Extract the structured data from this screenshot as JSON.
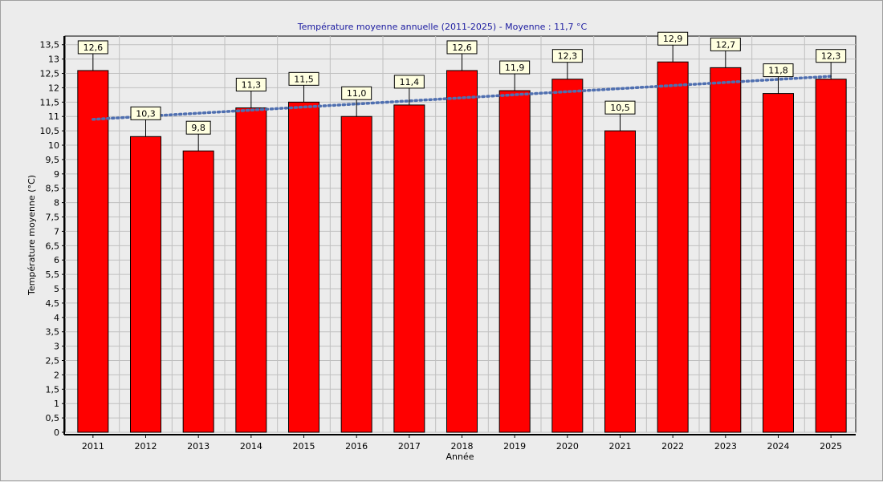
{
  "colors": {
    "bar": "#ff0000",
    "bar_stroke": "#000000",
    "trend": "#4f6fb0",
    "title": "#1a1aa0",
    "label_bg": "#ffffe0",
    "plot_bg": "#ececec",
    "grid": "#c0c0c0"
  },
  "chart_data": {
    "type": "bar",
    "title": "Température moyenne annuelle (2011-2025) - Moyenne : 11,7 °C",
    "xlabel": "Année",
    "ylabel": "Température moyenne (°C)",
    "ylim": [
      0,
      13.8
    ],
    "y_ticks": [
      "0",
      "0,5",
      "1",
      "1,5",
      "2",
      "2,5",
      "3",
      "3,5",
      "4",
      "4,5",
      "5",
      "5,5",
      "6",
      "6,5",
      "7",
      "7,5",
      "8",
      "8,5",
      "9",
      "9,5",
      "10",
      "10,5",
      "11",
      "11,5",
      "12",
      "12,5",
      "13",
      "13,5"
    ],
    "y_tick_values": [
      0,
      0.5,
      1,
      1.5,
      2,
      2.5,
      3,
      3.5,
      4,
      4.5,
      5,
      5.5,
      6,
      6.5,
      7,
      7.5,
      8,
      8.5,
      9,
      9.5,
      10,
      10.5,
      11,
      11.5,
      12,
      12.5,
      13,
      13.5
    ],
    "categories": [
      "2011",
      "2012",
      "2013",
      "2014",
      "2015",
      "2016",
      "2017",
      "2018",
      "2019",
      "2020",
      "2021",
      "2022",
      "2023",
      "2024",
      "2025"
    ],
    "values": [
      12.6,
      10.3,
      9.8,
      11.3,
      11.5,
      11.0,
      11.4,
      12.6,
      11.9,
      12.3,
      10.5,
      12.9,
      12.7,
      11.8,
      12.3
    ],
    "data_labels": [
      "12,6",
      "10,3",
      "9,8",
      "11,3",
      "11,5",
      "11,0",
      "11,4",
      "12,6",
      "11,9",
      "12,3",
      "10,5",
      "12,9",
      "12,7",
      "11,8",
      "12,3"
    ],
    "trend_line": {
      "style": "dotted",
      "start": 10.9,
      "end": 12.4
    },
    "grid": true,
    "legend": "none"
  }
}
